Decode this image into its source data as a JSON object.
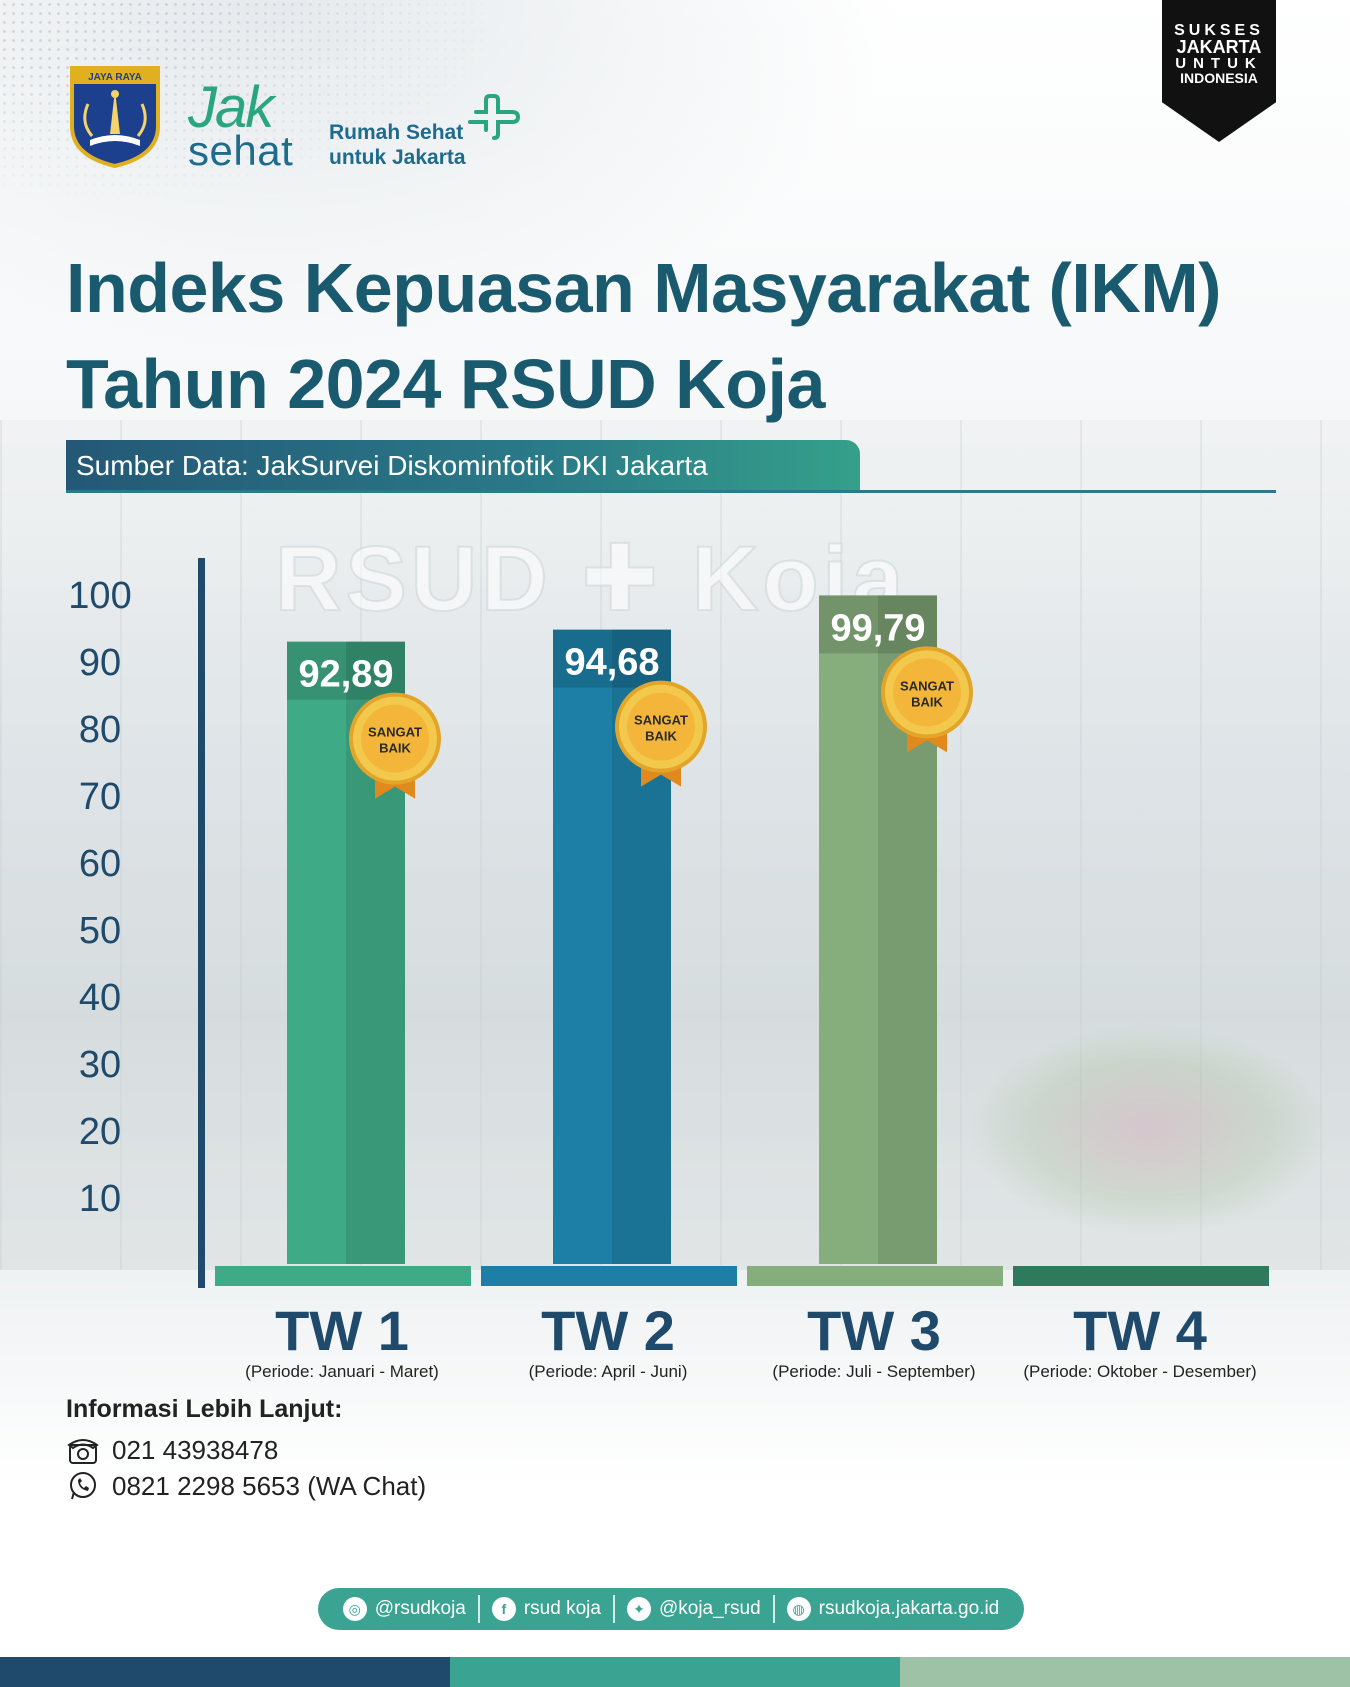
{
  "header": {
    "crest_text": "JAYA RAYA",
    "brand_jak": "Jak",
    "brand_sehat": "sehat",
    "tagline_line1": "Rumah Sehat",
    "tagline_line2": "untuk Jakarta",
    "badge": [
      "SUKSES",
      "JAKARTA",
      "UNTUK",
      "INDONESIA"
    ]
  },
  "title_line1": "Indeks Kepuasan Masyarakat (IKM)",
  "title_line2": "Tahun 2024 RSUD Koja",
  "source": "Sumber Data: JakSurvei Diskominfotik DKI Jakarta",
  "watermark": "RSUD ✚ Koja",
  "chart_data": {
    "type": "bar",
    "categories": [
      "TW 1",
      "TW 2",
      "TW 3",
      "TW 4"
    ],
    "periods": [
      "(Periode: Januari - Maret)",
      "(Periode: April - Juni)",
      "(Periode: Juli - September)",
      "(Periode: Oktober - Desember)"
    ],
    "values": [
      92.89,
      94.68,
      99.79,
      null
    ],
    "value_labels": [
      "92,89",
      "94,68",
      "99,79",
      ""
    ],
    "medal_label_line1": "SANGAT",
    "medal_label_line2": "BAIK",
    "medals": [
      true,
      true,
      true,
      false
    ],
    "yticks": [
      10,
      20,
      30,
      40,
      50,
      60,
      70,
      80,
      90,
      100
    ],
    "ylim": [
      0,
      100
    ],
    "colors": [
      "#3faa86",
      "#1d7fa6",
      "#86ad7c",
      "#2f7a5c"
    ],
    "grid": false
  },
  "contact": {
    "title": "Informasi Lebih Lanjut:",
    "phone": "021 43938478",
    "whatsapp": "0821 2298 5653 (WA Chat)"
  },
  "social": {
    "instagram": "@rsudkoja",
    "facebook": "rsud koja",
    "twitter": "@koja_rsud",
    "website": "rsudkoja.jakarta.go.id"
  },
  "colors": {
    "title": "#1a5a6f",
    "footer": [
      "#1f4a6b",
      "#3aa392",
      "#9dc2a6"
    ]
  }
}
